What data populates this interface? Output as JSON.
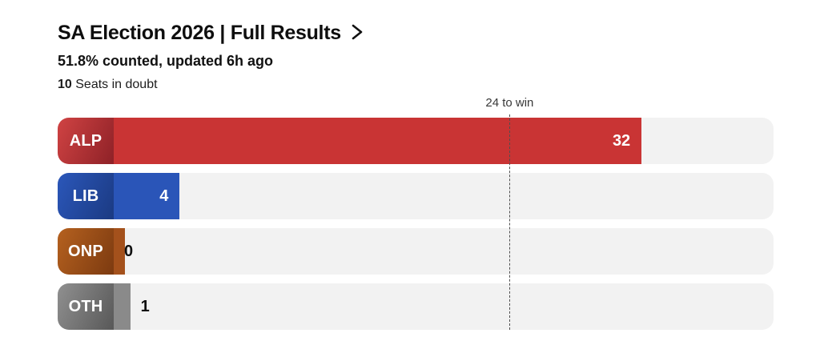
{
  "header": {
    "title": "SA Election 2026 | Full Results",
    "subtitle": "51.8% counted, updated 6h ago",
    "seats_in_doubt_value": "10",
    "seats_in_doubt_label": " Seats in doubt",
    "chevron_icon": "chevron-right"
  },
  "chart_data": {
    "type": "bar",
    "orientation": "horizontal",
    "categories": [
      "ALP",
      "LIB",
      "ONP",
      "OTH"
    ],
    "values": [
      32,
      4,
      0,
      1
    ],
    "axis_max": 40,
    "target_line": {
      "value": 24,
      "label": "24 to win"
    },
    "track_color": "#f2f2f2",
    "legend_position": "none",
    "grid": false
  },
  "parties": [
    {
      "code": "ALP",
      "seats": 32,
      "bar_color": "#c93434",
      "chip_gradient_start": "#d04343",
      "chip_gradient_end": "#8e2127"
    },
    {
      "code": "LIB",
      "seats": 4,
      "bar_color": "#2a55b8",
      "chip_gradient_start": "#2b57ba",
      "chip_gradient_end": "#1b3a82"
    },
    {
      "code": "ONP",
      "seats": 0,
      "bar_color": "#a4511c",
      "chip_gradient_start": "#b5611f",
      "chip_gradient_end": "#7c3a10"
    },
    {
      "code": "OTH",
      "seats": 1,
      "bar_color": "#8a8a8a",
      "chip_gradient_start": "#909090",
      "chip_gradient_end": "#585858"
    }
  ],
  "layout_colors": {
    "text_primary": "#0e0e0e",
    "target_line_color": "#4f4f4f"
  }
}
